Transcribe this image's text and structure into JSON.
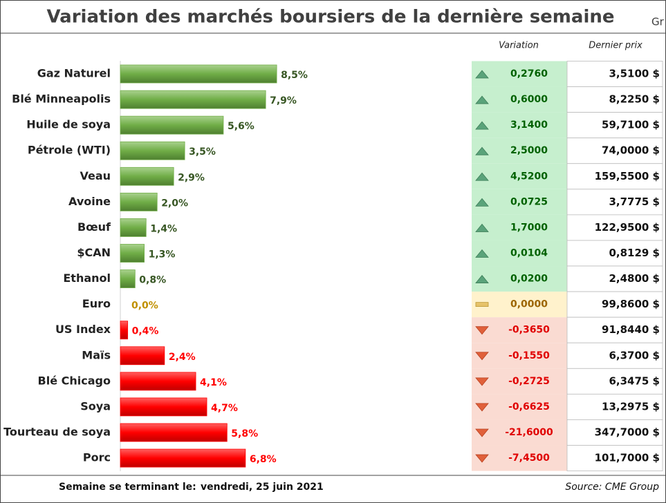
{
  "chart_data": {
    "type": "bar",
    "orientation": "horizontal",
    "title": "Variation des marchés boursiers de la dernière semaine",
    "corner_text": "Gr",
    "categories": [
      "Gaz Naturel",
      "Blé Minneapolis",
      "Huile de soya",
      "Pétrole (WTI)",
      "Veau",
      "Avoine",
      "Bœuf",
      "$CAN",
      "Ethanol",
      "Euro",
      "US Index",
      "Maïs",
      "Blé Chicago",
      "Soya",
      "Tourteau de soya",
      "Porc"
    ],
    "values": [
      8.5,
      7.9,
      5.6,
      3.5,
      2.9,
      2.0,
      1.4,
      1.3,
      0.8,
      0.0,
      0.4,
      2.4,
      4.1,
      4.7,
      5.8,
      6.8
    ],
    "value_labels": [
      "8,5%",
      "7,9%",
      "5,6%",
      "3,5%",
      "2,9%",
      "2,0%",
      "1,4%",
      "1,3%",
      "0,8%",
      "0,0%",
      "0,4%",
      "2,4%",
      "4,1%",
      "4,7%",
      "5,8%",
      "6,8%"
    ],
    "trend": [
      "up",
      "up",
      "up",
      "up",
      "up",
      "up",
      "up",
      "up",
      "up",
      "flat",
      "down",
      "down",
      "down",
      "down",
      "down",
      "down"
    ],
    "colors": {
      "up": "#70ad47",
      "flat": "#c9a227",
      "down": "#ff0000"
    },
    "label_colors": {
      "up": "#375623",
      "flat": "#c09000",
      "down": "#ff0000"
    },
    "xlim": [
      0,
      10
    ],
    "table": {
      "headers": [
        "Variation",
        "Dernier prix"
      ],
      "rows": [
        [
          "0,2760",
          "3,5100 $"
        ],
        [
          "0,6000",
          "8,2250 $"
        ],
        [
          "3,1400",
          "59,7100 $"
        ],
        [
          "2,5000",
          "74,0000 $"
        ],
        [
          "4,5200",
          "159,5500 $"
        ],
        [
          "0,0725",
          "3,7775 $"
        ],
        [
          "1,7000",
          "122,9500 $"
        ],
        [
          "0,0104",
          "0,8129 $"
        ],
        [
          "0,0200",
          "2,4800 $"
        ],
        [
          "0,0000",
          "99,8600 $"
        ],
        [
          "-0,3650",
          "91,8440 $"
        ],
        [
          "-0,1550",
          "6,3700 $"
        ],
        [
          "-0,2725",
          "6,3475 $"
        ],
        [
          "-0,6625",
          "13,2975 $"
        ],
        [
          "-21,6000",
          "347,7000 $"
        ],
        [
          "-7,4500",
          "101,7000 $"
        ]
      ]
    },
    "footer": {
      "label": "Semaine se terminant le:",
      "date": "vendredi, 25 juin 2021",
      "source": "Source: CME Group"
    }
  }
}
